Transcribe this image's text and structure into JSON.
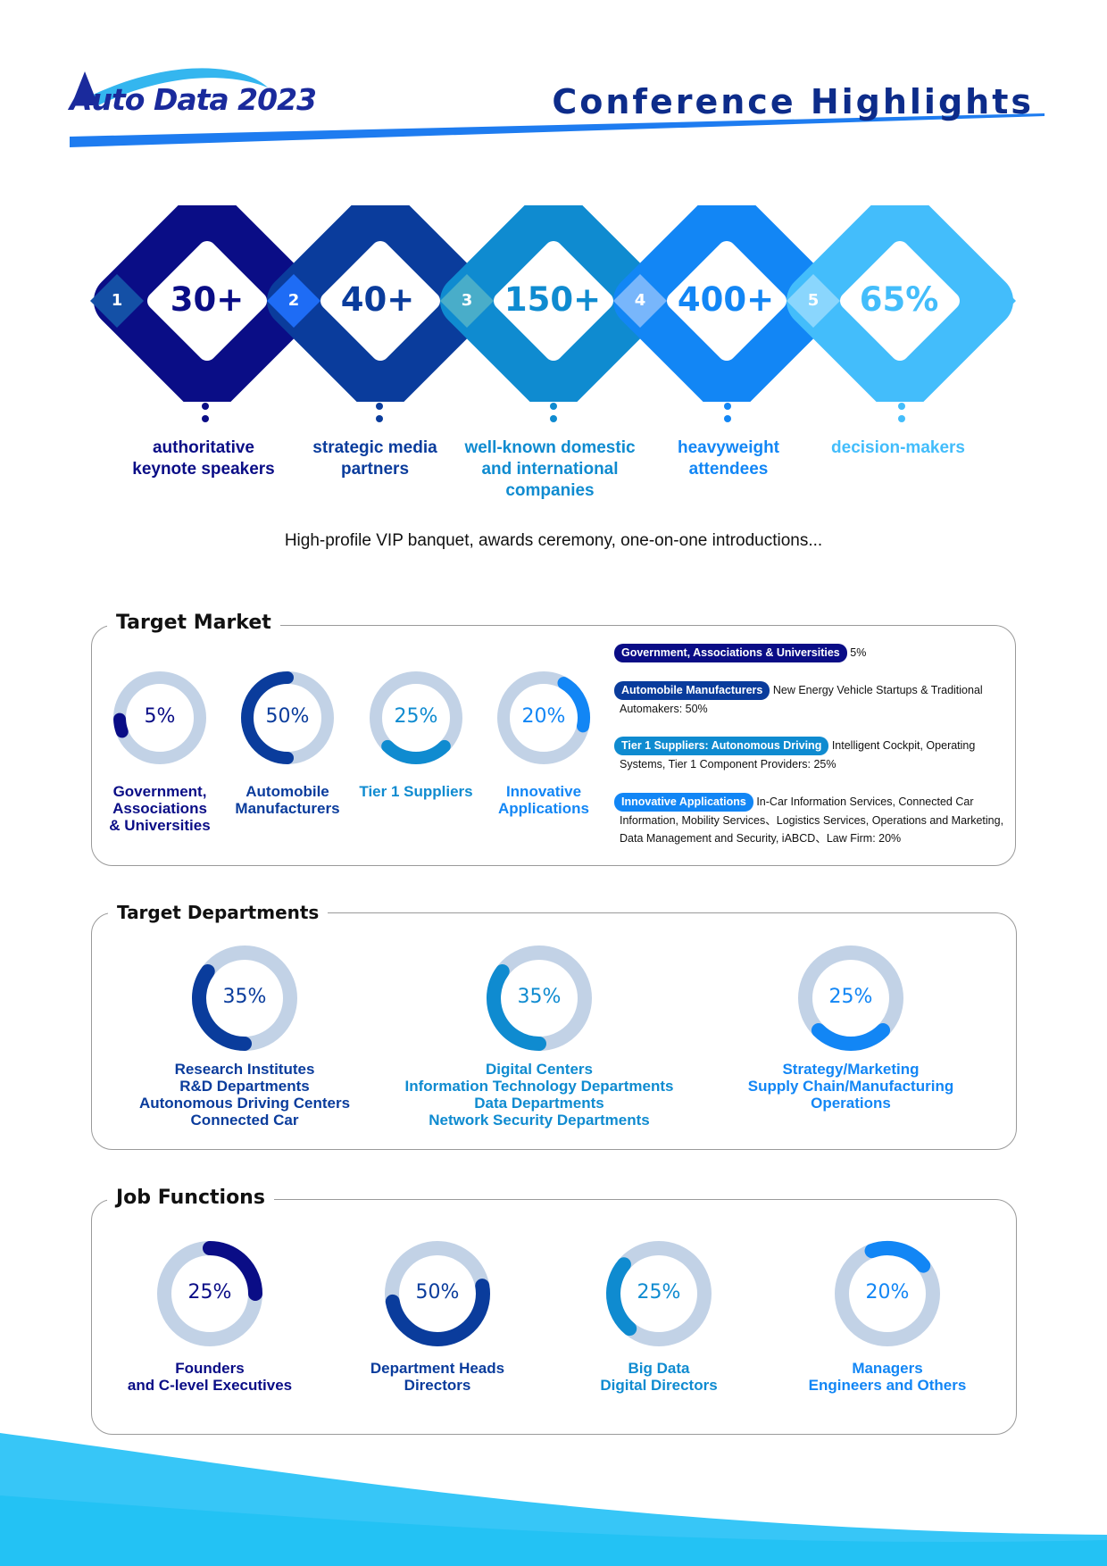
{
  "header": {
    "logo_text": "Auto Data 2023",
    "title": "Conference Highlights"
  },
  "highlights": [
    {
      "index": "1",
      "value": "30+",
      "label_lines": [
        "authoritative",
        "keynote speakers"
      ],
      "color": "#0a0d86"
    },
    {
      "index": "2",
      "value": "40+",
      "label_lines": [
        "strategic media",
        "partners"
      ],
      "color": "#0a3c9c"
    },
    {
      "index": "3",
      "value": "150+",
      "label_lines": [
        "well-known domestic",
        "and international",
        "companies"
      ],
      "color": "#0f8bd0"
    },
    {
      "index": "4",
      "value": "400+",
      "label_lines": [
        "heavyweight",
        "attendees"
      ],
      "color": "#1286f5"
    },
    {
      "index": "5",
      "value": "65%",
      "label_lines": [
        "decision-makers"
      ],
      "color": "#43bdfb"
    }
  ],
  "tagline": "High-profile VIP banquet, awards ceremony, one-on-one introductions...",
  "target_market": {
    "title": "Target Market",
    "items": [
      {
        "percent": "5%",
        "label_lines": [
          "Government,",
          "Associations",
          "& Universities"
        ],
        "color": "#0a0d86",
        "fraction": 0.05
      },
      {
        "percent": "50%",
        "label_lines": [
          "Automobile",
          "Manufacturers"
        ],
        "color": "#0a3c9c",
        "fraction": 0.5
      },
      {
        "percent": "25%",
        "label_lines": [
          "Tier 1 Suppliers"
        ],
        "color": "#0f8bd0",
        "fraction": 0.25
      },
      {
        "percent": "20%",
        "label_lines": [
          "Innovative",
          "Applications"
        ],
        "color": "#1286f5",
        "fraction": 0.2
      }
    ],
    "details": [
      {
        "tag": "Government, Associations & Universities",
        "text": "5%",
        "color": "#0a0d86"
      },
      {
        "tag": "Automobile Manufacturers",
        "text": "New Energy Vehicle Startups & Traditional Automakers: 50%",
        "color": "#0a3c9c"
      },
      {
        "tag": "Tier 1 Suppliers: Autonomous Driving",
        "text": "Intelligent Cockpit, Operating Systems, Tier 1 Component Providers: 25%",
        "color": "#0f8bd0"
      },
      {
        "tag": "Innovative Applications",
        "text": "In-Car Information Services, Connected Car Information, Mobility Services、Logistics Services, Operations and Marketing, Data Management and Security, iABCD、Law Firm: 20%",
        "color": "#1286f5"
      }
    ]
  },
  "target_departments": {
    "title": "Target Departments",
    "items": [
      {
        "percent": "35%",
        "label_lines": [
          "Research Institutes",
          "R&D Departments",
          "Autonomous Driving Centers",
          "Connected Car"
        ],
        "color": "#0a3c9c",
        "fraction": 0.35
      },
      {
        "percent": "35%",
        "label_lines": [
          "Digital Centers",
          "Information Technology Departments",
          "Data Departments",
          "Network Security Departments"
        ],
        "color": "#0f8bd0",
        "fraction": 0.35
      },
      {
        "percent": "25%",
        "label_lines": [
          "Strategy/Marketing",
          "Supply Chain/Manufacturing",
          "Operations"
        ],
        "color": "#1286f5",
        "fraction": 0.25
      }
    ]
  },
  "job_functions": {
    "title": "Job Functions",
    "items": [
      {
        "percent": "25%",
        "label_lines": [
          "Founders",
          "and C-level Executives"
        ],
        "color": "#0a0d86",
        "fraction": 0.25
      },
      {
        "percent": "50%",
        "label_lines": [
          "Department Heads",
          "Directors"
        ],
        "color": "#0a3c9c",
        "fraction": 0.5
      },
      {
        "percent": "25%",
        "label_lines": [
          "Big Data",
          "Digital Directors"
        ],
        "color": "#0f8bd0",
        "fraction": 0.25
      },
      {
        "percent": "20%",
        "label_lines": [
          "Managers",
          "Engineers and Others"
        ],
        "color": "#1286f5",
        "fraction": 0.2
      }
    ]
  },
  "colors": {
    "track": "#c2d2e6",
    "wave_light": "#35c3f7",
    "wave_dark": "#18a8ee"
  }
}
